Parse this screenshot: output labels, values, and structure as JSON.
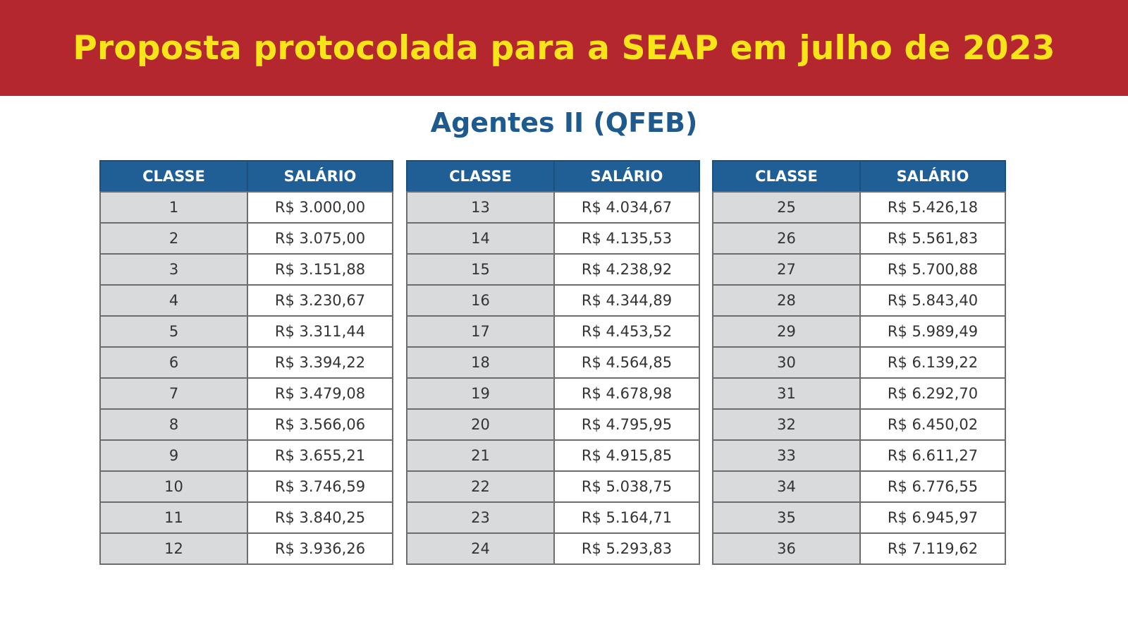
{
  "header": {
    "title": "Proposta protocolada para a SEAP em julho de 2023"
  },
  "subtitle": "Agentes II (QFEB)",
  "colors": {
    "banner": "#b5272e",
    "title": "#f7e51a",
    "subtitle": "#1e5a8e",
    "table_header": "#1f5f96",
    "classe_cell": "#d8dadb"
  },
  "columns": {
    "classe": "CLASSE",
    "salario": "SALÁRIO"
  },
  "tables": [
    {
      "rows": [
        {
          "classe": "1",
          "salario": "R$ 3.000,00"
        },
        {
          "classe": "2",
          "salario": "R$ 3.075,00"
        },
        {
          "classe": "3",
          "salario": "R$ 3.151,88"
        },
        {
          "classe": "4",
          "salario": "R$ 3.230,67"
        },
        {
          "classe": "5",
          "salario": "R$ 3.311,44"
        },
        {
          "classe": "6",
          "salario": "R$ 3.394,22"
        },
        {
          "classe": "7",
          "salario": "R$ 3.479,08"
        },
        {
          "classe": "8",
          "salario": "R$ 3.566,06"
        },
        {
          "classe": "9",
          "salario": "R$ 3.655,21"
        },
        {
          "classe": "10",
          "salario": "R$ 3.746,59"
        },
        {
          "classe": "11",
          "salario": "R$ 3.840,25"
        },
        {
          "classe": "12",
          "salario": "R$ 3.936,26"
        }
      ]
    },
    {
      "rows": [
        {
          "classe": "13",
          "salario": "R$ 4.034,67"
        },
        {
          "classe": "14",
          "salario": "R$ 4.135,53"
        },
        {
          "classe": "15",
          "salario": "R$ 4.238,92"
        },
        {
          "classe": "16",
          "salario": "R$ 4.344,89"
        },
        {
          "classe": "17",
          "salario": "R$ 4.453,52"
        },
        {
          "classe": "18",
          "salario": "R$ 4.564,85"
        },
        {
          "classe": "19",
          "salario": "R$ 4.678,98"
        },
        {
          "classe": "20",
          "salario": "R$ 4.795,95"
        },
        {
          "classe": "21",
          "salario": "R$ 4.915,85"
        },
        {
          "classe": "22",
          "salario": "R$ 5.038,75"
        },
        {
          "classe": "23",
          "salario": "R$ 5.164,71"
        },
        {
          "classe": "24",
          "salario": "R$ 5.293,83"
        }
      ]
    },
    {
      "rows": [
        {
          "classe": "25",
          "salario": "R$ 5.426,18"
        },
        {
          "classe": "26",
          "salario": "R$ 5.561,83"
        },
        {
          "classe": "27",
          "salario": "R$ 5.700,88"
        },
        {
          "classe": "28",
          "salario": "R$ 5.843,40"
        },
        {
          "classe": "29",
          "salario": "R$ 5.989,49"
        },
        {
          "classe": "30",
          "salario": "R$ 6.139,22"
        },
        {
          "classe": "31",
          "salario": "R$ 6.292,70"
        },
        {
          "classe": "32",
          "salario": "R$ 6.450,02"
        },
        {
          "classe": "33",
          "salario": "R$ 6.611,27"
        },
        {
          "classe": "34",
          "salario": "R$ 6.776,55"
        },
        {
          "classe": "35",
          "salario": "R$ 6.945,97"
        },
        {
          "classe": "36",
          "salario": "R$ 7.119,62"
        }
      ]
    }
  ]
}
